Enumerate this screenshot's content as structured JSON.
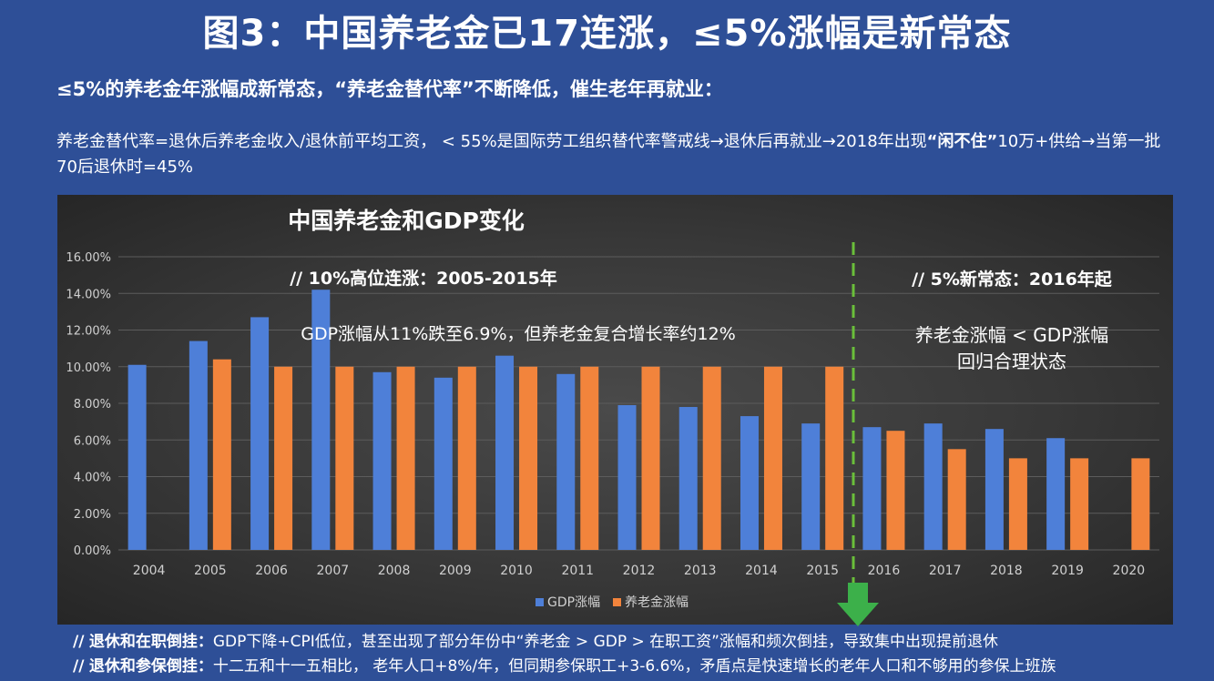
{
  "slide": {
    "title": "图3：中国养老金已17连涨，≤5%涨幅是新常态",
    "subtitle": "≤5%的养老金年涨幅成新常态，“养老金替代率”不断降低，催生老年再就业：",
    "desc_part1": "养老金替代率=退休后养老金收入/退休前平均工资， < 55%是国际劳工组织替代率警戒线→退休后再就业→2018年出现",
    "desc_bold": "“闲不住”",
    "desc_part2": "10万+供给→当第一批70后退休时=45%",
    "bottom1_prefix": "//",
    "bottom1_label": "退休和在职倒挂：",
    "bottom1_text": "GDP下降+CPI低位，甚至出现了部分年份中“养老金 > GDP > 在职工资”涨幅和频次倒挂，导致集中出现提前退休",
    "bottom2_prefix": "//",
    "bottom2_label": "退休和参保倒挂：",
    "bottom2_text": "十二五和十一五相比， 老年人口+8%/年，但同期参保职工+3-6.6%，矛盾点是快速增长的老年人口和不够用的参保上班族"
  },
  "colors": {
    "background": "#2e4f97",
    "gdp": "#4e7fd8",
    "pension": "#f2843c",
    "divider": "#6abf3a",
    "arrow": "#3cb04a"
  },
  "chart_data": {
    "type": "bar",
    "title": "中国养老金和GDP变化",
    "categories": [
      "2004",
      "2005",
      "2006",
      "2007",
      "2008",
      "2009",
      "2010",
      "2011",
      "2012",
      "2013",
      "2014",
      "2015",
      "2016",
      "2017",
      "2018",
      "2019",
      "2020"
    ],
    "series": [
      {
        "name": "GDP涨幅",
        "color": "#4e7fd8",
        "values": [
          10.1,
          11.4,
          12.7,
          14.2,
          9.7,
          9.4,
          10.6,
          9.6,
          7.9,
          7.8,
          7.3,
          6.9,
          6.7,
          6.9,
          6.6,
          6.1,
          null
        ]
      },
      {
        "name": "养老金涨幅",
        "color": "#f2843c",
        "values": [
          null,
          10.4,
          10.0,
          10.0,
          10.0,
          10.0,
          10.0,
          10.0,
          10.0,
          10.0,
          10.0,
          10.0,
          6.5,
          5.5,
          5.0,
          5.0,
          5.0
        ]
      }
    ],
    "y_ticks": [
      "0.00%",
      "2.00%",
      "4.00%",
      "6.00%",
      "8.00%",
      "10.00%",
      "12.00%",
      "14.00%",
      "16.00%"
    ],
    "ylim": [
      0,
      16
    ],
    "grid": true,
    "legend_position": "bottom",
    "annotations": {
      "left_heading": "//  10%高位连涨：2005-2015年",
      "left_note": "GDP涨幅从11%跌至6.9%，但养老金复合增长率约12%",
      "right_heading": "//  5%新常态：2016年起",
      "right_note_line1": "养老金涨幅 < GDP涨幅",
      "right_note_line2": "回归合理状态"
    }
  }
}
